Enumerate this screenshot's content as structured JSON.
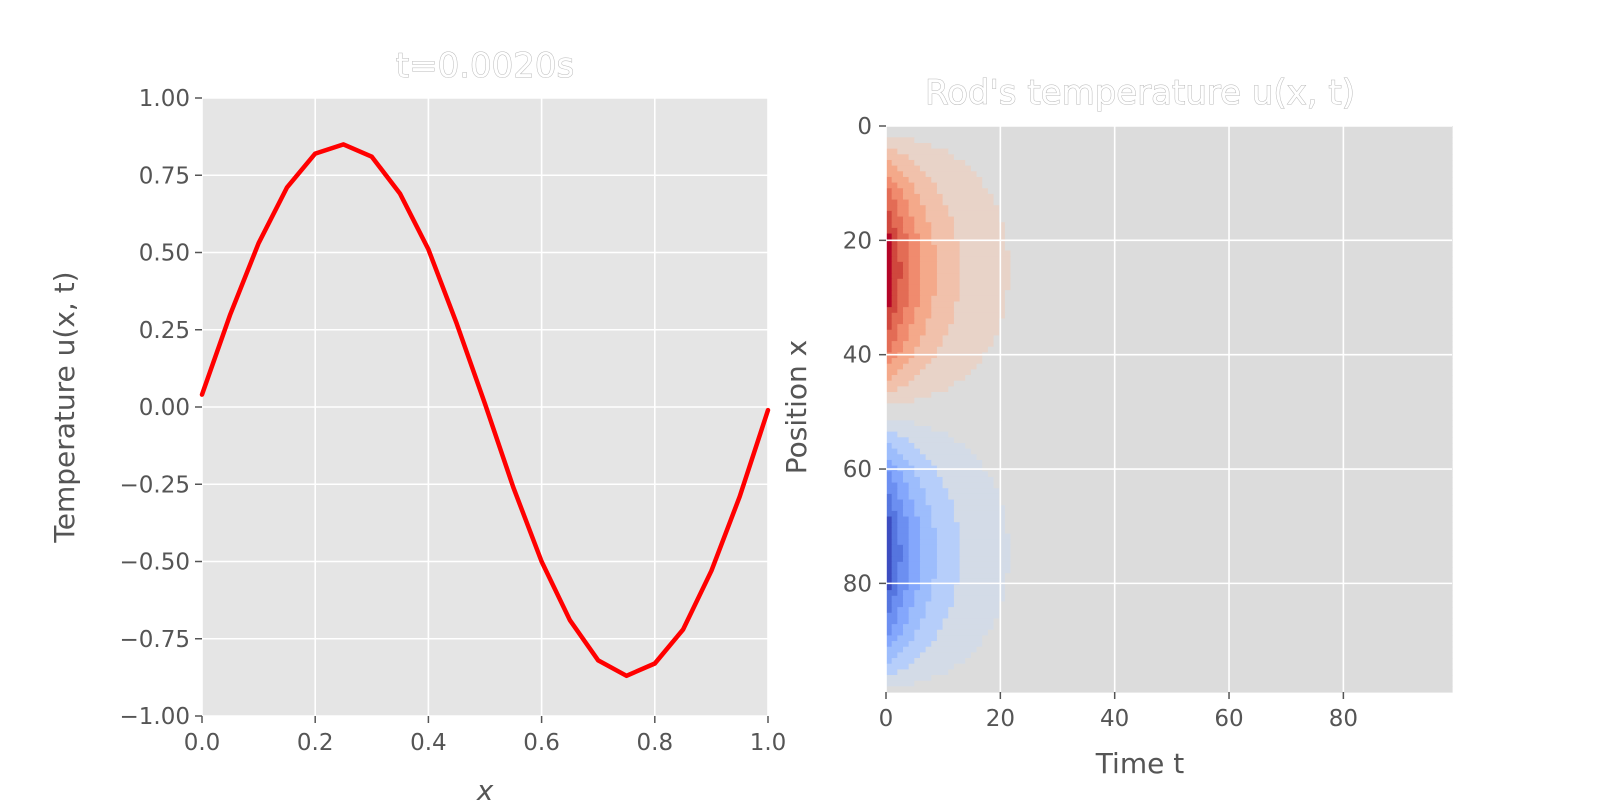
{
  "chart_data": [
    {
      "type": "line",
      "title": "t=0.0020s",
      "xlabel": "x",
      "ylabel": "Temperature u(x, t)",
      "xlim": [
        0,
        1
      ],
      "ylim": [
        -1,
        1
      ],
      "xticks": [
        "0.0",
        "0.2",
        "0.4",
        "0.6",
        "0.8",
        "1.0"
      ],
      "yticks": [
        "1.00",
        "0.75",
        "0.50",
        "0.25",
        "0.00",
        "−0.25",
        "−0.50",
        "−0.75",
        "−1.00"
      ],
      "grid": true,
      "series": [
        {
          "color": "#ff0000",
          "x": [
            0.0,
            0.05,
            0.1,
            0.15,
            0.2,
            0.25,
            0.3,
            0.35,
            0.4,
            0.45,
            0.5,
            0.55,
            0.6,
            0.65,
            0.7,
            0.75,
            0.8,
            0.85,
            0.9,
            0.95,
            1.0
          ],
          "y": [
            0.04,
            0.3,
            0.53,
            0.71,
            0.82,
            0.85,
            0.81,
            0.69,
            0.51,
            0.27,
            0.01,
            -0.26,
            -0.5,
            -0.69,
            -0.82,
            -0.87,
            -0.83,
            -0.72,
            -0.53,
            -0.29,
            -0.01
          ]
        }
      ]
    },
    {
      "type": "heatmap",
      "title": "Rod's temperature u(x, t)",
      "xlabel": "Time t",
      "ylabel": "Position x",
      "colormap": "coolwarm",
      "xlim": [
        0,
        99
      ],
      "ylim": [
        99,
        0
      ],
      "xticks": [
        "0",
        "20",
        "40",
        "60",
        "80"
      ],
      "yticks": [
        "0",
        "20",
        "40",
        "60",
        "80"
      ],
      "grid": true,
      "shape": [
        100,
        100
      ],
      "field": "u(x,t) ≈ 0.85·sin(2πx/100)·exp(−t/8), quantized color bands",
      "color_bands": [
        {
          "level": 0.85,
          "color": "#b40426"
        },
        {
          "level": 0.72,
          "color": "#d0473d"
        },
        {
          "level": 0.6,
          "color": "#e36c55"
        },
        {
          "level": 0.48,
          "color": "#f08b6e"
        },
        {
          "level": 0.36,
          "color": "#f4a98a"
        },
        {
          "level": 0.24,
          "color": "#f1c1ab"
        },
        {
          "level": 0.12,
          "color": "#e8d3c8"
        },
        {
          "level": 0.0,
          "color": "#dcdcdc"
        },
        {
          "level": -0.12,
          "color": "#d3dbe7"
        },
        {
          "level": -0.24,
          "color": "#b6cefa"
        },
        {
          "level": -0.36,
          "color": "#9dbdfc"
        },
        {
          "level": -0.48,
          "color": "#84a7fc"
        },
        {
          "level": -0.6,
          "color": "#6c8ff1"
        },
        {
          "level": -0.72,
          "color": "#5575df"
        },
        {
          "level": -0.85,
          "color": "#3b4cc0"
        }
      ]
    }
  ]
}
